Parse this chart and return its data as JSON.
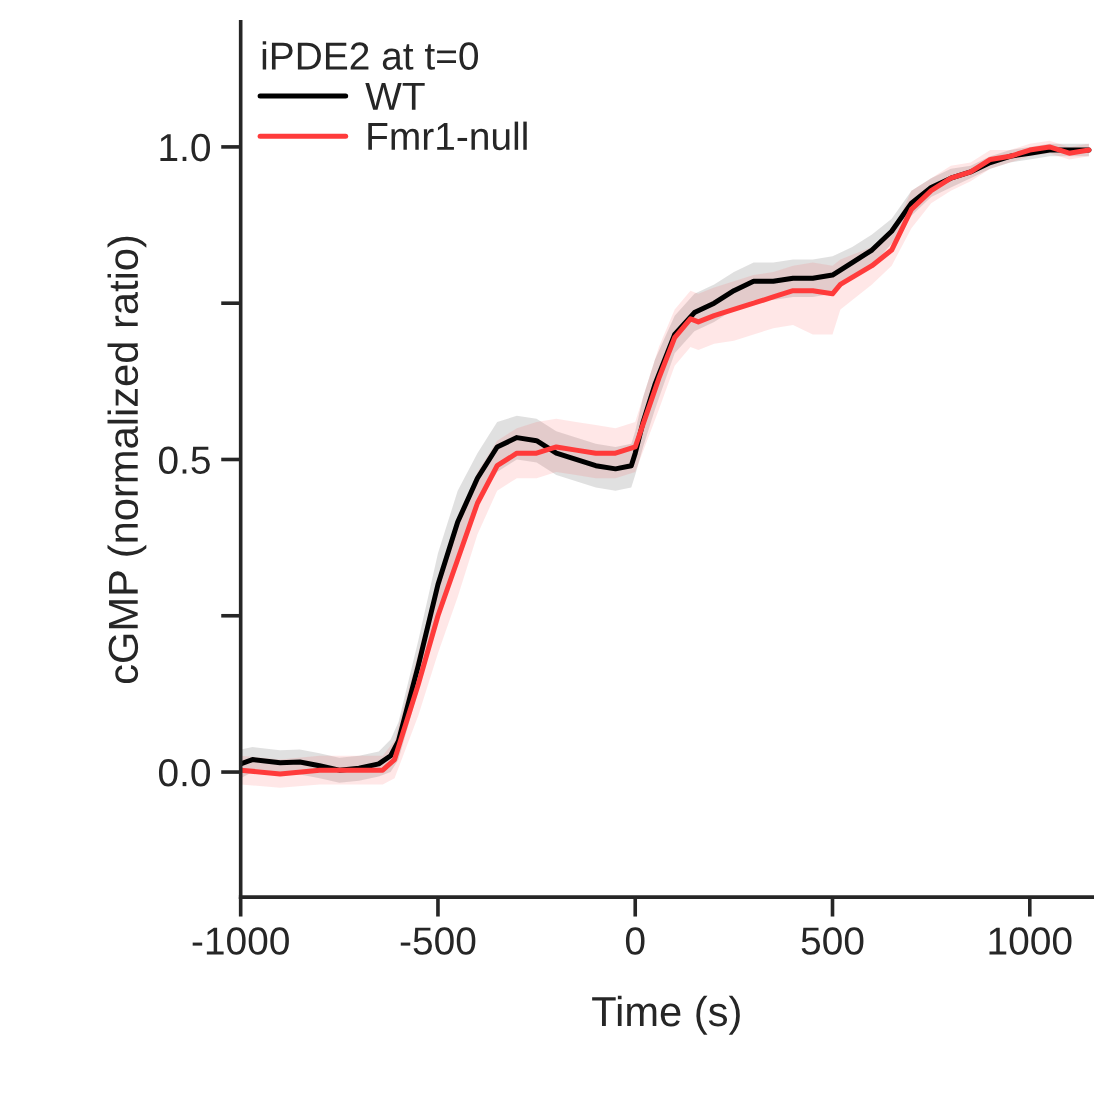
{
  "chart_data": {
    "type": "line",
    "xlabel": "Time (s)",
    "ylabel": "cGMP (normalized ratio)",
    "legend_title": "iPDE2 at t=0",
    "legend": "top left",
    "grid": false,
    "xlim": [
      -1000,
      1160
    ],
    "xticks": [
      -1000,
      -500,
      0,
      500,
      1000
    ],
    "ylim": [
      -0.2,
      1.2
    ],
    "yticks": [
      {
        "value": 0,
        "label": "0.0"
      },
      {
        "value": 0.25,
        "label": null
      },
      0.5,
      {
        "value": 0.75,
        "label": null
      },
      {
        "value": 1,
        "label": "1.0"
      }
    ],
    "series": [
      {
        "name": "WT",
        "color": "#000000",
        "x": [
          -1000,
          -970,
          -900,
          -850,
          -800,
          -750,
          -700,
          -650,
          -620,
          -600,
          -550,
          -500,
          -450,
          -400,
          -350,
          -300,
          -250,
          -200,
          -150,
          -100,
          -50,
          -10,
          0,
          20,
          50,
          100,
          150,
          200,
          250,
          300,
          350,
          400,
          450,
          500,
          550,
          600,
          650,
          700,
          750,
          800,
          850,
          900,
          950,
          1000,
          1050,
          1100,
          1150
        ],
        "values": [
          0.013,
          0.02,
          0.015,
          0.016,
          0.01,
          0.003,
          0.006,
          0.013,
          0.026,
          0.05,
          0.17,
          0.3,
          0.4,
          0.47,
          0.52,
          0.535,
          0.53,
          0.51,
          0.5,
          0.49,
          0.485,
          0.49,
          0.51,
          0.56,
          0.62,
          0.7,
          0.735,
          0.75,
          0.77,
          0.785,
          0.785,
          0.79,
          0.79,
          0.795,
          0.815,
          0.835,
          0.865,
          0.91,
          0.935,
          0.95,
          0.96,
          0.975,
          0.985,
          0.99,
          0.995,
          0.995,
          0.995
        ],
        "lower": [
          -0.01,
          0.0,
          -0.005,
          -0.004,
          -0.01,
          -0.017,
          -0.014,
          -0.007,
          0.0,
          0.02,
          0.13,
          0.25,
          0.35,
          0.43,
          0.48,
          0.5,
          0.495,
          0.475,
          0.465,
          0.455,
          0.45,
          0.455,
          0.475,
          0.52,
          0.58,
          0.67,
          0.705,
          0.72,
          0.74,
          0.755,
          0.755,
          0.76,
          0.76,
          0.765,
          0.79,
          0.81,
          0.845,
          0.89,
          0.92,
          0.935,
          0.95,
          0.965,
          0.975,
          0.98,
          0.985,
          0.985,
          0.985
        ],
        "upper": [
          0.036,
          0.04,
          0.035,
          0.036,
          0.03,
          0.023,
          0.026,
          0.033,
          0.052,
          0.08,
          0.21,
          0.35,
          0.45,
          0.51,
          0.56,
          0.57,
          0.565,
          0.545,
          0.535,
          0.525,
          0.52,
          0.525,
          0.545,
          0.6,
          0.66,
          0.73,
          0.765,
          0.78,
          0.8,
          0.815,
          0.815,
          0.82,
          0.82,
          0.825,
          0.84,
          0.86,
          0.885,
          0.93,
          0.95,
          0.965,
          0.97,
          0.985,
          0.995,
          1.0,
          1.005,
          1.005,
          1.005
        ]
      },
      {
        "name": "Fmr1-null",
        "color": "#ff3b3b",
        "x": [
          -1000,
          -900,
          -800,
          -700,
          -640,
          -610,
          -550,
          -500,
          -450,
          -400,
          -350,
          -300,
          -250,
          -200,
          -150,
          -100,
          -50,
          0,
          30,
          60,
          100,
          140,
          160,
          200,
          250,
          300,
          350,
          400,
          450,
          500,
          520,
          600,
          650,
          700,
          750,
          800,
          850,
          900,
          950,
          1000,
          1050,
          1100,
          1150
        ],
        "values": [
          0.003,
          -0.003,
          0.003,
          0.003,
          0.003,
          0.02,
          0.14,
          0.25,
          0.34,
          0.43,
          0.49,
          0.51,
          0.51,
          0.52,
          0.515,
          0.51,
          0.51,
          0.52,
          0.575,
          0.63,
          0.695,
          0.725,
          0.72,
          0.73,
          0.74,
          0.75,
          0.76,
          0.77,
          0.77,
          0.765,
          0.78,
          0.81,
          0.835,
          0.9,
          0.93,
          0.95,
          0.96,
          0.98,
          0.985,
          0.995,
          1.0,
          0.99,
          0.995
        ],
        "lower": [
          -0.02,
          -0.025,
          -0.02,
          -0.02,
          -0.02,
          -0.01,
          0.09,
          0.19,
          0.28,
          0.38,
          0.45,
          0.47,
          0.47,
          0.48,
          0.475,
          0.47,
          0.47,
          0.48,
          0.53,
          0.58,
          0.65,
          0.68,
          0.675,
          0.685,
          0.69,
          0.7,
          0.71,
          0.715,
          0.7,
          0.7,
          0.74,
          0.78,
          0.81,
          0.87,
          0.91,
          0.93,
          0.945,
          0.965,
          0.975,
          0.985,
          0.99,
          0.98,
          0.985
        ],
        "upper": [
          0.026,
          0.02,
          0.026,
          0.026,
          0.026,
          0.05,
          0.19,
          0.31,
          0.4,
          0.48,
          0.53,
          0.55,
          0.56,
          0.565,
          0.56,
          0.555,
          0.55,
          0.56,
          0.62,
          0.68,
          0.74,
          0.77,
          0.765,
          0.775,
          0.785,
          0.795,
          0.8,
          0.81,
          0.815,
          0.81,
          0.82,
          0.84,
          0.86,
          0.93,
          0.95,
          0.97,
          0.975,
          0.995,
          0.995,
          1.005,
          1.01,
          1.0,
          1.005
        ]
      }
    ]
  }
}
